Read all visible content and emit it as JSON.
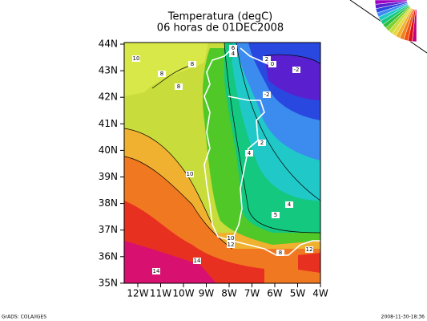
{
  "title": [
    "Temperatura (degC)",
    "06 horas de 01DEC2008"
  ],
  "latitude_labels": [
    "44N",
    "43N",
    "42N",
    "41N",
    "40N",
    "39N",
    "38N",
    "37N",
    "36N",
    "35N"
  ],
  "longitude_labels": [
    "12W",
    "11W",
    "10W",
    "9W",
    "8W",
    "7W",
    "6W",
    "5W",
    "4W"
  ],
  "contour_labels": [
    "10",
    "8",
    "8",
    "8",
    "6",
    "4",
    "2",
    "0",
    "-2",
    "-2",
    "2",
    "4",
    "10",
    "4",
    "5",
    "10",
    "12",
    "8",
    "12",
    "14",
    "14"
  ],
  "footer": {
    "left": "GrADS: COLA/IGES",
    "right": "2008-11-30-18:36"
  }
}
